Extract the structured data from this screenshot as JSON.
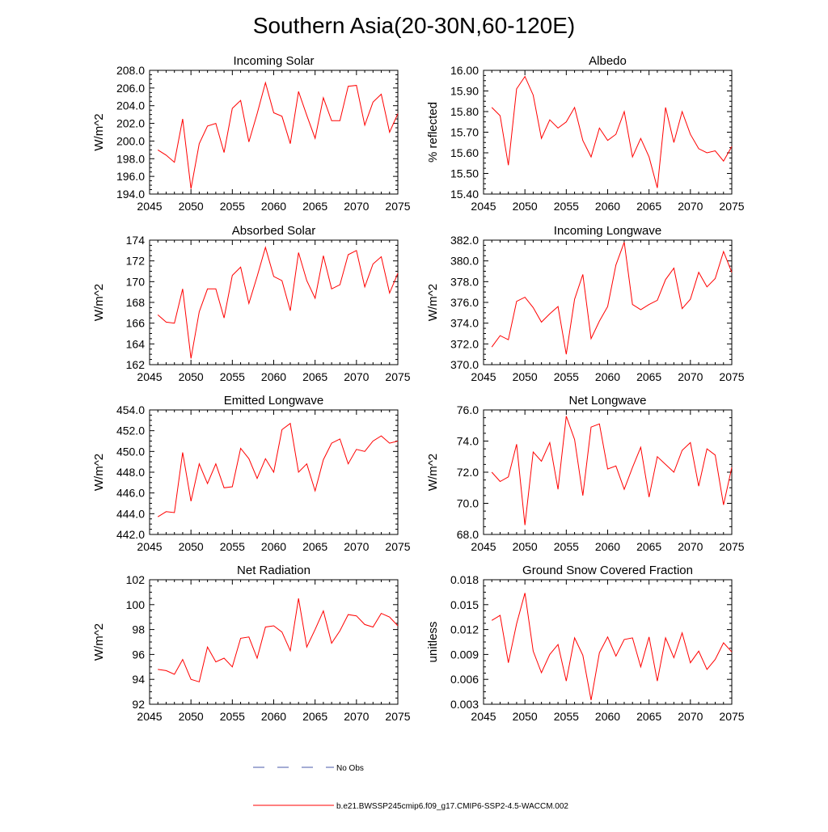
{
  "title": "Southern Asia(20-30N,60-120E)",
  "colors": {
    "series": "#ff0000",
    "obs": "#4a5aa8",
    "axis": "#000000"
  },
  "legend": {
    "obs_label": "No Obs",
    "model_label": "b.e21.BWSSP245cmip6.f09_g17.CMIP6-SSP2-4.5-WACCM.002"
  },
  "chart_data": [
    {
      "type": "line",
      "title": "Incoming Solar",
      "ylabel": "W/m^2",
      "xlim": [
        2045,
        2075
      ],
      "ylim": [
        194,
        208
      ],
      "yticks": [
        194,
        196,
        198,
        200,
        202,
        204,
        206,
        208
      ],
      "ytick_labels": [
        "194.0",
        "196.0",
        "198.0",
        "200.0",
        "202.0",
        "204.0",
        "206.0",
        "208.0"
      ],
      "xticks": [
        2045,
        2050,
        2055,
        2060,
        2065,
        2070,
        2075
      ],
      "xtick_labels": [
        "2045",
        "2050",
        "2055",
        "2060",
        "2065",
        "2070",
        "2075"
      ],
      "x": [
        2046,
        2047,
        2048,
        2049,
        2050,
        2051,
        2052,
        2053,
        2054,
        2055,
        2056,
        2057,
        2058,
        2059,
        2060,
        2061,
        2062,
        2063,
        2064,
        2065,
        2066,
        2067,
        2068,
        2069,
        2070,
        2071,
        2072,
        2073,
        2074,
        2075
      ],
      "values": [
        199.0,
        198.4,
        197.6,
        202.5,
        194.6,
        199.7,
        201.7,
        202.0,
        198.7,
        203.7,
        204.6,
        199.9,
        203.1,
        206.6,
        203.2,
        202.8,
        199.7,
        205.6,
        202.9,
        200.3,
        204.9,
        202.3,
        202.3,
        206.2,
        206.3,
        201.8,
        204.4,
        205.3,
        201.0,
        203.1
      ]
    },
    {
      "type": "line",
      "title": "Albedo",
      "ylabel": "% reflected",
      "xlim": [
        2045,
        2075
      ],
      "ylim": [
        15.4,
        16.0
      ],
      "yticks": [
        15.4,
        15.5,
        15.6,
        15.7,
        15.8,
        15.9,
        16.0
      ],
      "ytick_labels": [
        "15.40",
        "15.50",
        "15.60",
        "15.70",
        "15.80",
        "15.90",
        "16.00"
      ],
      "xticks": [
        2045,
        2050,
        2055,
        2060,
        2065,
        2070,
        2075
      ],
      "xtick_labels": [
        "2045",
        "2050",
        "2055",
        "2060",
        "2065",
        "2070",
        "2075"
      ],
      "x": [
        2046,
        2047,
        2048,
        2049,
        2050,
        2051,
        2052,
        2053,
        2054,
        2055,
        2056,
        2057,
        2058,
        2059,
        2060,
        2061,
        2062,
        2063,
        2064,
        2065,
        2066,
        2067,
        2068,
        2069,
        2070,
        2071,
        2072,
        2073,
        2074,
        2075
      ],
      "values": [
        15.82,
        15.78,
        15.54,
        15.91,
        15.97,
        15.88,
        15.67,
        15.76,
        15.72,
        15.75,
        15.82,
        15.66,
        15.58,
        15.72,
        15.66,
        15.69,
        15.8,
        15.58,
        15.67,
        15.58,
        15.43,
        15.82,
        15.65,
        15.8,
        15.69,
        15.62,
        15.6,
        15.61,
        15.56,
        15.63
      ]
    },
    {
      "type": "line",
      "title": "Absorbed Solar",
      "ylabel": "W/m^2",
      "xlim": [
        2045,
        2075
      ],
      "ylim": [
        162,
        174
      ],
      "yticks": [
        162,
        164,
        166,
        168,
        170,
        172,
        174
      ],
      "ytick_labels": [
        "162",
        "164",
        "166",
        "168",
        "170",
        "172",
        "174"
      ],
      "xticks": [
        2045,
        2050,
        2055,
        2060,
        2065,
        2070,
        2075
      ],
      "xtick_labels": [
        "2045",
        "2050",
        "2055",
        "2060",
        "2065",
        "2070",
        "2075"
      ],
      "x": [
        2046,
        2047,
        2048,
        2049,
        2050,
        2051,
        2052,
        2053,
        2054,
        2055,
        2056,
        2057,
        2058,
        2059,
        2060,
        2061,
        2062,
        2063,
        2064,
        2065,
        2066,
        2067,
        2068,
        2069,
        2070,
        2071,
        2072,
        2073,
        2074,
        2075
      ],
      "values": [
        166.8,
        166.1,
        166.0,
        169.3,
        162.6,
        167.1,
        169.3,
        169.3,
        166.5,
        170.6,
        171.4,
        167.9,
        170.5,
        173.3,
        170.5,
        170.1,
        167.2,
        172.8,
        170.1,
        168.4,
        172.5,
        169.3,
        169.7,
        172.6,
        173.0,
        169.5,
        171.7,
        172.4,
        168.9,
        170.8
      ]
    },
    {
      "type": "line",
      "title": "Incoming Longwave",
      "ylabel": "W/m^2",
      "xlim": [
        2045,
        2075
      ],
      "ylim": [
        370,
        382
      ],
      "yticks": [
        370,
        372,
        374,
        376,
        378,
        380,
        382
      ],
      "ytick_labels": [
        "370.0",
        "372.0",
        "374.0",
        "376.0",
        "378.0",
        "380.0",
        "382.0"
      ],
      "xticks": [
        2045,
        2050,
        2055,
        2060,
        2065,
        2070,
        2075
      ],
      "xtick_labels": [
        "2045",
        "2050",
        "2055",
        "2060",
        "2065",
        "2070",
        "2075"
      ],
      "x": [
        2046,
        2047,
        2048,
        2049,
        2050,
        2051,
        2052,
        2053,
        2054,
        2055,
        2056,
        2057,
        2058,
        2059,
        2060,
        2061,
        2062,
        2063,
        2064,
        2065,
        2066,
        2067,
        2068,
        2069,
        2070,
        2071,
        2072,
        2073,
        2074,
        2075
      ],
      "values": [
        371.7,
        372.8,
        372.4,
        376.1,
        376.5,
        375.5,
        374.1,
        374.9,
        375.6,
        371.0,
        376.3,
        378.7,
        372.5,
        374.2,
        375.6,
        379.6,
        381.8,
        375.8,
        375.3,
        375.8,
        376.2,
        378.2,
        379.3,
        375.4,
        376.3,
        378.9,
        377.5,
        378.3,
        380.9,
        378.9
      ]
    },
    {
      "type": "line",
      "title": "Emitted Longwave",
      "ylabel": "W/m^2",
      "xlim": [
        2045,
        2075
      ],
      "ylim": [
        442,
        454
      ],
      "yticks": [
        442,
        444,
        446,
        448,
        450,
        452,
        454
      ],
      "ytick_labels": [
        "442.0",
        "444.0",
        "446.0",
        "448.0",
        "450.0",
        "452.0",
        "454.0"
      ],
      "xticks": [
        2045,
        2050,
        2055,
        2060,
        2065,
        2070,
        2075
      ],
      "xtick_labels": [
        "2045",
        "2050",
        "2055",
        "2060",
        "2065",
        "2070",
        "2075"
      ],
      "x": [
        2046,
        2047,
        2048,
        2049,
        2050,
        2051,
        2052,
        2053,
        2054,
        2055,
        2056,
        2057,
        2058,
        2059,
        2060,
        2061,
        2062,
        2063,
        2064,
        2065,
        2066,
        2067,
        2068,
        2069,
        2070,
        2071,
        2072,
        2073,
        2074,
        2075
      ],
      "values": [
        443.7,
        444.2,
        444.1,
        449.9,
        445.2,
        448.8,
        446.9,
        448.8,
        446.5,
        446.6,
        450.3,
        449.3,
        447.4,
        449.3,
        448.0,
        452.1,
        452.7,
        448.0,
        448.8,
        446.2,
        449.2,
        450.8,
        451.2,
        448.8,
        450.2,
        450.0,
        451.0,
        451.5,
        450.8,
        451.0
      ]
    },
    {
      "type": "line",
      "title": "Net Longwave",
      "ylabel": "W/m^2",
      "xlim": [
        2045,
        2075
      ],
      "ylim": [
        68,
        76
      ],
      "yticks": [
        68,
        70,
        72,
        74,
        76
      ],
      "ytick_labels": [
        "68.0",
        "70.0",
        "72.0",
        "74.0",
        "76.0"
      ],
      "xticks": [
        2045,
        2050,
        2055,
        2060,
        2065,
        2070,
        2075
      ],
      "xtick_labels": [
        "2045",
        "2050",
        "2055",
        "2060",
        "2065",
        "2070",
        "2075"
      ],
      "x": [
        2046,
        2047,
        2048,
        2049,
        2050,
        2051,
        2052,
        2053,
        2054,
        2055,
        2056,
        2057,
        2058,
        2059,
        2060,
        2061,
        2062,
        2063,
        2064,
        2065,
        2066,
        2067,
        2068,
        2069,
        2070,
        2071,
        2072,
        2073,
        2074,
        2075
      ],
      "values": [
        72.0,
        71.4,
        71.7,
        73.8,
        68.6,
        73.3,
        72.7,
        73.9,
        70.9,
        75.6,
        74.1,
        70.5,
        74.9,
        75.1,
        72.2,
        72.4,
        70.9,
        72.3,
        73.6,
        70.4,
        73.0,
        72.5,
        72.0,
        73.4,
        73.9,
        71.1,
        73.5,
        73.1,
        69.9,
        72.3
      ]
    },
    {
      "type": "line",
      "title": "Net Radiation",
      "ylabel": "W/m^2",
      "xlim": [
        2045,
        2075
      ],
      "ylim": [
        92,
        102
      ],
      "yticks": [
        92,
        94,
        96,
        98,
        100,
        102
      ],
      "ytick_labels": [
        "92",
        "94",
        "96",
        "98",
        "100",
        "102"
      ],
      "xticks": [
        2045,
        2050,
        2055,
        2060,
        2065,
        2070,
        2075
      ],
      "xtick_labels": [
        "2045",
        "2050",
        "2055",
        "2060",
        "2065",
        "2070",
        "2075"
      ],
      "x": [
        2046,
        2047,
        2048,
        2049,
        2050,
        2051,
        2052,
        2053,
        2054,
        2055,
        2056,
        2057,
        2058,
        2059,
        2060,
        2061,
        2062,
        2063,
        2064,
        2065,
        2066,
        2067,
        2068,
        2069,
        2070,
        2071,
        2072,
        2073,
        2074,
        2075
      ],
      "values": [
        94.8,
        94.7,
        94.4,
        95.6,
        94.0,
        93.8,
        96.6,
        95.4,
        95.7,
        95.0,
        97.3,
        97.4,
        95.7,
        98.2,
        98.3,
        97.8,
        96.3,
        100.5,
        96.6,
        98.0,
        99.5,
        96.9,
        97.9,
        99.2,
        99.1,
        98.4,
        98.2,
        99.3,
        99.0,
        98.3
      ]
    },
    {
      "type": "line",
      "title": "Ground Snow Covered Fraction",
      "ylabel": "unitless",
      "xlim": [
        2045,
        2075
      ],
      "ylim": [
        0.003,
        0.018
      ],
      "yticks": [
        0.003,
        0.006,
        0.009,
        0.012,
        0.015,
        0.018
      ],
      "ytick_labels": [
        "0.003",
        "0.006",
        "0.009",
        "0.012",
        "0.015",
        "0.018"
      ],
      "xticks": [
        2045,
        2050,
        2055,
        2060,
        2065,
        2070,
        2075
      ],
      "xtick_labels": [
        "2045",
        "2050",
        "2055",
        "2060",
        "2065",
        "2070",
        "2075"
      ],
      "x": [
        2046,
        2047,
        2048,
        2049,
        2050,
        2051,
        2052,
        2053,
        2054,
        2055,
        2056,
        2057,
        2058,
        2059,
        2060,
        2061,
        2062,
        2063,
        2064,
        2065,
        2066,
        2067,
        2068,
        2069,
        2070,
        2071,
        2072,
        2073,
        2074,
        2075
      ],
      "values": [
        0.0131,
        0.0137,
        0.008,
        0.0127,
        0.0164,
        0.0094,
        0.0068,
        0.009,
        0.0102,
        0.0058,
        0.011,
        0.0089,
        0.0035,
        0.0092,
        0.0111,
        0.0088,
        0.0108,
        0.011,
        0.0075,
        0.0111,
        0.0058,
        0.011,
        0.0086,
        0.0116,
        0.008,
        0.0094,
        0.0072,
        0.0084,
        0.0104,
        0.0093
      ]
    }
  ]
}
